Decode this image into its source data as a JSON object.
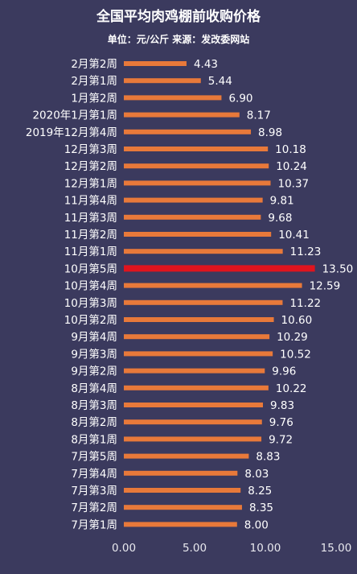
{
  "chart_data": {
    "type": "bar",
    "orientation": "horizontal",
    "title": "全国平均肉鸡棚前收购价格",
    "subtitle": "单位：元/公斤 来源：发改委网站",
    "categories": [
      "2月第2周",
      "2月第1周",
      "1月第2周",
      "2020年1月第1周",
      "2019年12月第4周",
      "12月第3周",
      "12月第2周",
      "12月第1周",
      "11月第4周",
      "11月第3周",
      "11月第2周",
      "11月第1周",
      "10月第5周",
      "10月第4周",
      "10月第3周",
      "10月第2周",
      "9月第4周",
      "9月第3周",
      "9月第2周",
      "8月第4周",
      "8月第3周",
      "8月第2周",
      "8月第1周",
      "7月第5周",
      "7月第4周",
      "7月第3周",
      "7月第2周",
      "7月第1周"
    ],
    "values": [
      4.43,
      5.44,
      6.9,
      8.17,
      8.98,
      10.18,
      10.24,
      10.37,
      9.81,
      9.68,
      10.41,
      11.23,
      13.5,
      12.59,
      11.22,
      10.6,
      10.29,
      10.52,
      9.96,
      10.22,
      9.83,
      9.76,
      9.72,
      8.83,
      8.03,
      8.25,
      8.35,
      8.0
    ],
    "value_labels": [
      "4.43",
      "5.44",
      "6.90",
      "8.17",
      "8.98",
      "10.18",
      "10.24",
      "10.37",
      "9.81",
      "9.68",
      "10.41",
      "11.23",
      "13.50",
      "12.59",
      "11.22",
      "10.60",
      "10.29",
      "10.52",
      "9.96",
      "10.22",
      "9.83",
      "9.76",
      "9.72",
      "8.83",
      "8.03",
      "8.25",
      "8.35",
      "8.00"
    ],
    "xlim": [
      0,
      15
    ],
    "xticks": [
      "0.00",
      "5.00",
      "10.00",
      "15.00"
    ],
    "grid": false,
    "legend": "none",
    "highlight_index": 12,
    "colors": {
      "bar": "#e8793a",
      "highlight": "#e0141e",
      "background": "#3b3a5e"
    }
  }
}
